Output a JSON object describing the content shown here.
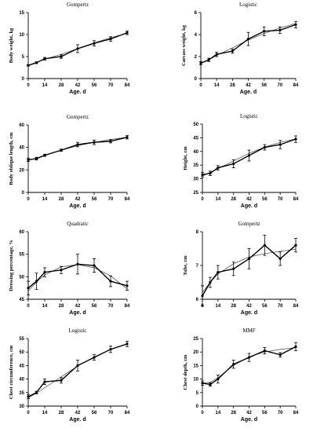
{
  "chart_data": [
    {
      "type": "line",
      "title": "Gompertz",
      "xlabel": "Age. d",
      "ylabel": "Body weight, kg",
      "x": [
        0,
        7,
        14,
        28,
        42,
        56,
        70,
        84
      ],
      "xticks": [
        0,
        14,
        28,
        42,
        56,
        70,
        84
      ],
      "ylim": [
        0,
        15
      ],
      "yticks": [
        0,
        5,
        10,
        15
      ],
      "observed": [
        3.0,
        3.6,
        4.5,
        5.0,
        6.8,
        8.0,
        9.0,
        10.4
      ],
      "error": [
        0.15,
        0.2,
        0.3,
        0.4,
        0.9,
        0.6,
        0.5,
        0.4
      ],
      "fitted": [
        3.0,
        3.7,
        4.4,
        5.5,
        6.8,
        8.1,
        9.3,
        10.3
      ]
    },
    {
      "type": "line",
      "title": "Logistic",
      "xlabel": "Age. d",
      "ylabel": "Carcass weight, kg",
      "x": [
        0,
        7,
        14,
        28,
        42,
        56,
        70,
        84
      ],
      "xticks": [
        0,
        14,
        28,
        42,
        56,
        70,
        84
      ],
      "ylim": [
        0,
        6
      ],
      "yticks": [
        0,
        2,
        4,
        6
      ],
      "observed": [
        1.4,
        1.7,
        2.2,
        2.5,
        3.6,
        4.3,
        4.4,
        4.9
      ],
      "error": [
        0.15,
        0.15,
        0.2,
        0.2,
        0.6,
        0.4,
        0.3,
        0.3
      ],
      "fitted": [
        1.4,
        1.7,
        2.1,
        2.8,
        3.5,
        4.1,
        4.6,
        5.0
      ]
    },
    {
      "type": "line",
      "title": "Gompertz",
      "xlabel": "Age. d",
      "ylabel": "Body oblique length, cm",
      "x": [
        0,
        7,
        14,
        28,
        42,
        56,
        70,
        84
      ],
      "xticks": [
        0,
        14,
        28,
        42,
        56,
        70,
        84
      ],
      "ylim": [
        0,
        60
      ],
      "yticks": [
        0,
        20,
        40,
        60
      ],
      "observed": [
        29.0,
        30.0,
        33.0,
        37.5,
        42.5,
        44.5,
        45.5,
        49.0
      ],
      "error": [
        1.5,
        1.2,
        1.0,
        1.0,
        2.0,
        2.0,
        1.5,
        1.5
      ],
      "fitted": [
        28.5,
        30.5,
        33.0,
        37.5,
        41.5,
        44.5,
        47.0,
        49.0
      ]
    },
    {
      "type": "line",
      "title": "Logistic",
      "xlabel": "Age. d",
      "ylabel": "Height, cm",
      "x": [
        0,
        7,
        14,
        28,
        42,
        56,
        70,
        84
      ],
      "xticks": [
        0,
        14,
        28,
        42,
        56,
        70,
        84
      ],
      "ylim": [
        25,
        50
      ],
      "yticks": [
        25,
        30,
        35,
        40,
        45,
        50
      ],
      "observed": [
        31.5,
        32.0,
        34.0,
        35.5,
        38.5,
        41.5,
        42.5,
        44.5
      ],
      "error": [
        0.8,
        0.8,
        0.8,
        1.5,
        2.0,
        1.0,
        1.5,
        1.2
      ],
      "fitted": [
        31.0,
        32.3,
        33.7,
        36.5,
        39.3,
        41.6,
        43.3,
        44.6
      ]
    },
    {
      "type": "line",
      "title": "Quadratic",
      "xlabel": "Age. d",
      "ylabel": "Dressing percentage, %",
      "x": [
        0,
        7,
        14,
        28,
        42,
        56,
        70,
        84
      ],
      "xticks": [
        0,
        14,
        28,
        42,
        56,
        70,
        84
      ],
      "ylim": [
        45,
        60
      ],
      "yticks": [
        45,
        50,
        55,
        60
      ],
      "observed": [
        47.5,
        49.0,
        51.0,
        51.5,
        52.8,
        52.5,
        49.0,
        48.0
      ],
      "error": [
        1.5,
        1.8,
        1.0,
        0.8,
        2.2,
        1.5,
        1.2,
        1.0
      ],
      "fitted": [
        46.8,
        48.8,
        50.4,
        52.2,
        52.7,
        52.0,
        50.2,
        47.3
      ]
    },
    {
      "type": "line",
      "title": "Gompertz",
      "xlabel": "Age. d",
      "ylabel": "Tube, cm",
      "x": [
        0,
        7,
        14,
        28,
        42,
        56,
        70,
        84
      ],
      "xticks": [
        0,
        14,
        28,
        42,
        56,
        70,
        84
      ],
      "ylim": [
        6,
        8
      ],
      "yticks": [
        6,
        7,
        8
      ],
      "observed": [
        6.1,
        6.5,
        6.8,
        6.9,
        7.2,
        7.6,
        7.2,
        7.6
      ],
      "error": [
        0.3,
        0.15,
        0.2,
        0.2,
        0.3,
        0.3,
        0.2,
        0.2
      ],
      "fitted": [
        6.2,
        6.5,
        6.75,
        7.05,
        7.25,
        7.35,
        7.42,
        7.48
      ]
    },
    {
      "type": "line",
      "title": "Logistic",
      "xlabel": "Age. d",
      "ylabel": "Chest circumference, cm",
      "x": [
        0,
        7,
        14,
        28,
        42,
        56,
        70,
        84
      ],
      "xticks": [
        0,
        14,
        28,
        42,
        56,
        70,
        84
      ],
      "ylim": [
        30,
        55
      ],
      "yticks": [
        30,
        35,
        40,
        45,
        50,
        55
      ],
      "observed": [
        33.5,
        35.0,
        39.0,
        39.5,
        45.0,
        48.0,
        51.0,
        53.0
      ],
      "error": [
        0.8,
        0.5,
        1.0,
        1.0,
        2.0,
        1.0,
        1.2,
        1.0
      ],
      "fitted": [
        33.0,
        34.8,
        36.8,
        40.8,
        44.8,
        48.2,
        50.9,
        52.9
      ]
    },
    {
      "type": "line",
      "title": "MMF",
      "xlabel": "Age. d",
      "ylabel": "Chest depth, cm",
      "x": [
        0,
        7,
        14,
        28,
        42,
        56,
        70,
        84
      ],
      "xticks": [
        0,
        14,
        28,
        42,
        56,
        70,
        84
      ],
      "ylim": [
        0,
        25
      ],
      "yticks": [
        0,
        5,
        10,
        15,
        20,
        25
      ],
      "observed": [
        8.5,
        8.0,
        10.0,
        15.5,
        18.0,
        20.5,
        19.0,
        22.0
      ],
      "error": [
        0.8,
        0.6,
        1.5,
        1.5,
        1.5,
        1.2,
        0.8,
        1.5
      ],
      "fitted": [
        8.5,
        8.8,
        10.5,
        15.0,
        18.3,
        20.0,
        21.0,
        21.6
      ]
    }
  ]
}
